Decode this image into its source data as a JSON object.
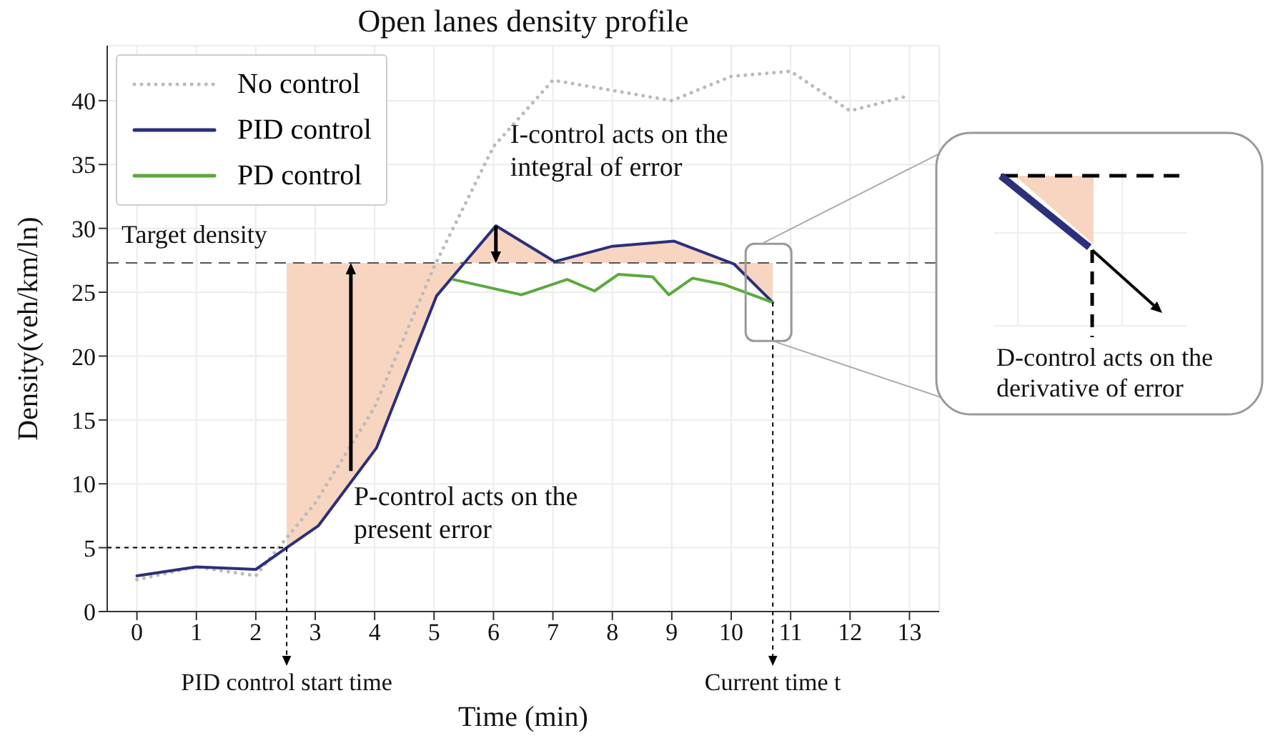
{
  "chart_data": {
    "type": "line",
    "title": "Open lanes density profile",
    "xlabel": "Time (min)",
    "ylabel": "Density(veh/km/ln)",
    "xlim": [
      -0.5,
      13.5
    ],
    "xticks": [
      0,
      1,
      2,
      3,
      4,
      5,
      6,
      7,
      8,
      9,
      10,
      11,
      12,
      13
    ],
    "ylim": [
      0,
      44.3
    ],
    "yticks": [
      0,
      5,
      10,
      15,
      20,
      25,
      30,
      35,
      40
    ],
    "grid": true,
    "legend": "top left",
    "series": [
      {
        "name": "No control",
        "color": "#bbbbbb",
        "line_style": "dotted",
        "x": [
          0,
          1,
          2,
          3,
          4,
          5,
          6,
          7,
          8,
          9,
          10,
          11,
          12,
          13
        ],
        "values": [
          2.5,
          3.5,
          2.8,
          8.5,
          16,
          27,
          36.4,
          41.6,
          40.8,
          40,
          41.9,
          42.3,
          39.2,
          40.4
        ]
      },
      {
        "name": "PID control",
        "color": "#2b2f7c",
        "line_style": "solid",
        "x": [
          0,
          1,
          2,
          2.52,
          3.05,
          4.03,
          5.04,
          5.51,
          6.04,
          7.03,
          8,
          9.04,
          10.05,
          10.7
        ],
        "values": [
          2.8,
          3.5,
          3.3,
          5,
          6.7,
          12.8,
          24.7,
          27.3,
          30.2,
          27.4,
          28.6,
          29,
          27.2,
          24.2
        ],
        "lower": [
          null,
          null,
          null,
          5,
          6.7,
          12.8,
          24.7,
          27.3,
          27.3,
          27.3,
          27.3,
          27.3,
          27.2,
          24.2
        ],
        "upper": [
          null,
          null,
          null,
          27.3,
          27.3,
          27.3,
          27.3,
          27.3,
          30.2,
          27.4,
          28.6,
          29,
          27.3,
          27.3
        ]
      },
      {
        "name": "PD control",
        "color": "#5aaa3c",
        "line_style": "solid",
        "x": [
          5.32,
          6.47,
          7.24,
          7.7,
          8.1,
          8.68,
          8.95,
          9.35,
          9.88,
          10.7
        ],
        "values": [
          26,
          24.8,
          26,
          25.1,
          26.4,
          26.2,
          24.8,
          26.1,
          25.6,
          24.2
        ]
      }
    ],
    "ref_lines": [
      {
        "axis": "y",
        "value": 27.3,
        "label": "Target density",
        "line_style": "dashed",
        "color": "#555555"
      }
    ],
    "annotations": [
      {
        "text": "I-control acts on the integral of error",
        "x": 6.04,
        "y": 30.2
      },
      {
        "text": "P-control acts on the present error",
        "x": 3.6,
        "y": 11
      },
      {
        "text": "PID control start time",
        "x": 2.52,
        "y": 5
      },
      {
        "text": "Current time t",
        "x": 10.7,
        "y": 24.2
      },
      "D-control acts on the derivative of error"
    ]
  }
}
